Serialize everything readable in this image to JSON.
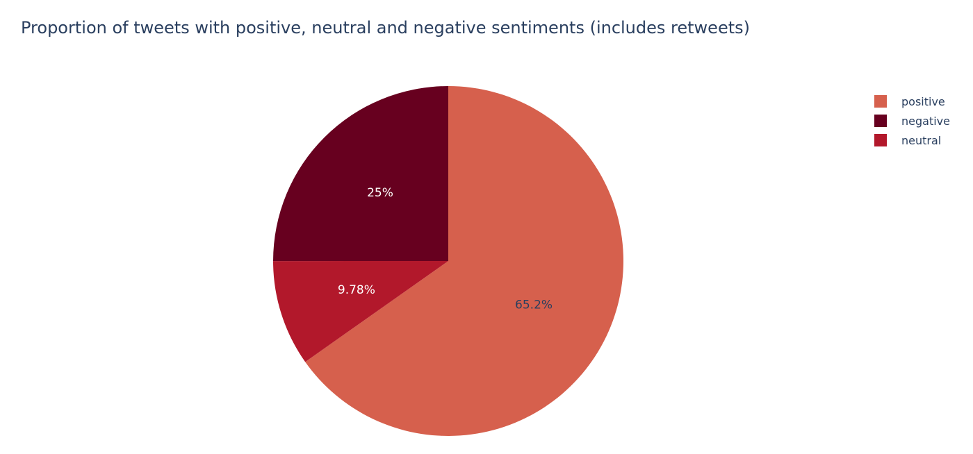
{
  "chart_data": {
    "type": "pie",
    "title": "Proportion of tweets with positive, neutral and negative sentiments (includes retweets)",
    "direction": "clockwise",
    "start_angle_deg": 0,
    "legend_position": "top-right",
    "slices": [
      {
        "label": "positive",
        "value": 65.2,
        "text": "65.2%",
        "color": "#d6604d",
        "text_color": "#2a3f5f"
      },
      {
        "label": "neutral",
        "value": 9.78,
        "text": "9.78%",
        "color": "#b2182b",
        "text_color": "#ffffff"
      },
      {
        "label": "negative",
        "value": 25.0,
        "text": "25%",
        "color": "#67001f",
        "text_color": "#ffffff"
      }
    ],
    "legend_order": [
      "positive",
      "negative",
      "neutral"
    ]
  }
}
